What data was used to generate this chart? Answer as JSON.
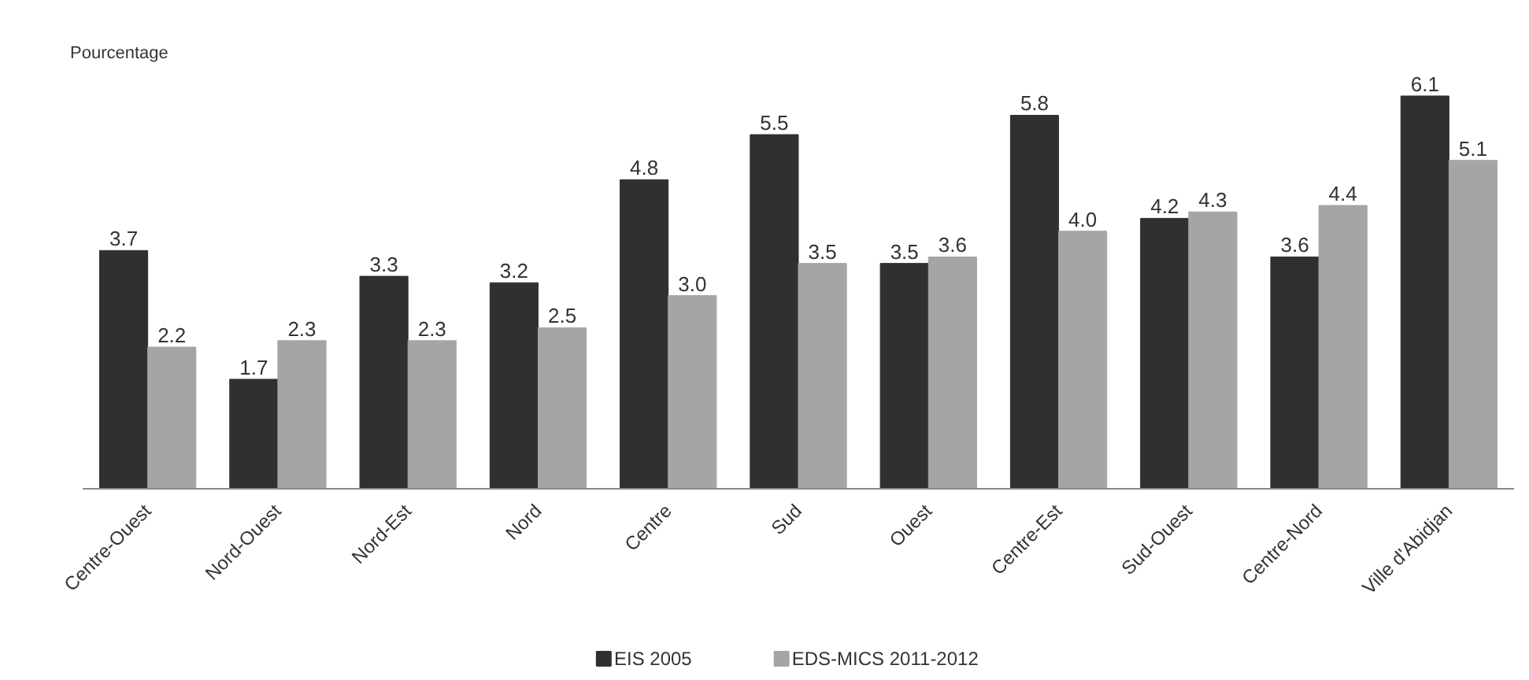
{
  "chart_data": {
    "type": "bar",
    "ylabel": "Pourcentage",
    "categories": [
      "Centre-Ouest",
      "Nord-Ouest",
      "Nord-Est",
      "Nord",
      "Centre",
      "Sud",
      "Ouest",
      "Centre-Est",
      "Sud-Ouest",
      "Centre-Nord",
      "Ville d'Abidjan"
    ],
    "series": [
      {
        "name": "EIS 2005",
        "color": "#303030",
        "values": [
          3.7,
          1.7,
          3.3,
          3.2,
          4.8,
          5.5,
          3.5,
          5.8,
          4.2,
          3.6,
          6.1
        ],
        "value_labels": [
          "3.7",
          "1.7",
          "3.3",
          "3.2",
          "4.8",
          "5.5",
          "3.5",
          "5.8",
          "4.2",
          "3.6",
          "6.1"
        ]
      },
      {
        "name": "EDS-MICS 2011-2012",
        "color": "#a5a5a5",
        "values": [
          2.2,
          2.3,
          2.3,
          2.5,
          3.0,
          3.5,
          3.6,
          4.0,
          4.3,
          4.4,
          5.1
        ],
        "value_labels": [
          "2.2",
          "2.3",
          "2.3",
          "2.5",
          "3.0",
          "3.5",
          "3.6",
          "4.0",
          "4.3",
          "4.4",
          "5.1"
        ]
      }
    ],
    "tick_labels": "x",
    "legend": "bottom",
    "grid": false
  }
}
